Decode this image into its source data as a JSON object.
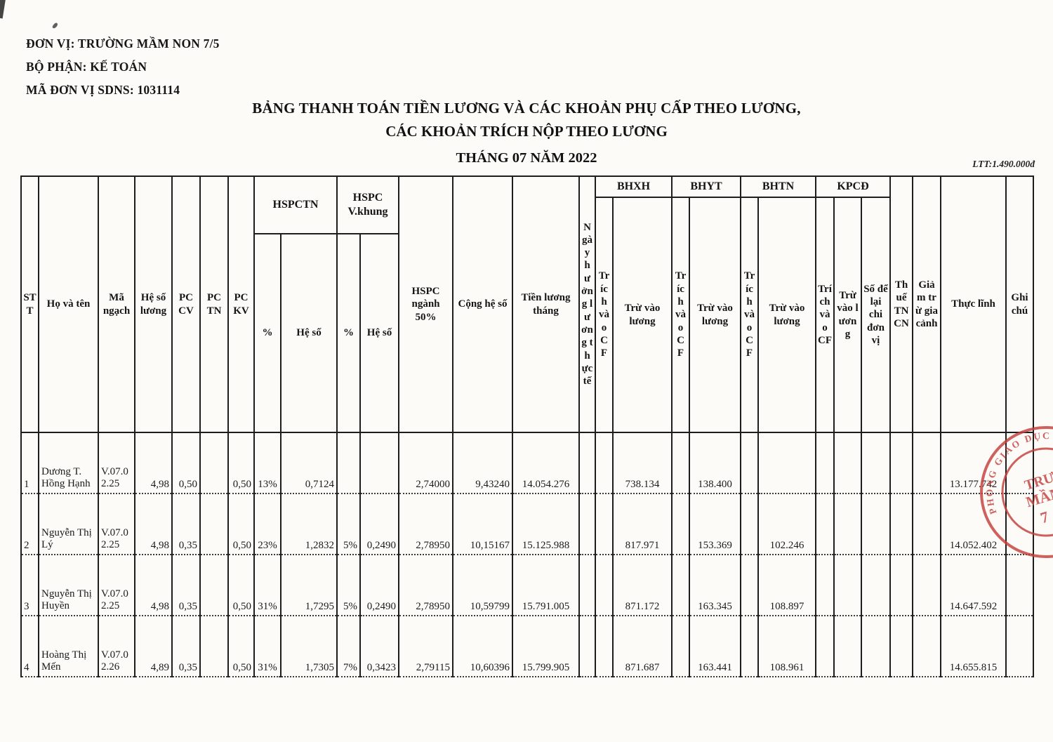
{
  "org": {
    "unit": "ĐƠN VỊ: TRƯỜNG MẦM NON 7/5",
    "department": "BỘ PHẬN: KẾ TOÁN",
    "unit_code": "MÃ ĐƠN VỊ SDNS: 1031114"
  },
  "title": {
    "line1": "BẢNG THANH TOÁN TIỀN LƯƠNG VÀ CÁC KHOẢN PHỤ CẤP THEO LƯƠNG,",
    "line2": "CÁC KHOẢN TRÍCH NỘP THEO LƯƠNG",
    "line3": "THÁNG 07 NĂM 2022",
    "ltt_note": "LTT:1.490.000đ"
  },
  "table": {
    "headers": {
      "stt": "STT",
      "ho_va_ten": "Họ và tên",
      "ma_ngach": "Mã ngạch",
      "he_so_luong": "Hệ số lương",
      "pc_cv": "PC CV",
      "pc_tn": "PC TN",
      "pc_kv": "PC KV",
      "hspctn": "HSPCTN",
      "hspc_vkhung": "HSPC V.khung",
      "pct": "%",
      "he_so": "Hệ số",
      "hspc_nganh": "HSPC ngành 50%",
      "cong_he_so": "Cộng hệ số",
      "tien_luong_thang": "Tiền lương tháng",
      "ngay_huong": "Ngày hưởng lương thực tế",
      "bhxh": "BHXH",
      "bhyt": "BHYT",
      "bhtn": "BHTN",
      "kpcd": "KPCĐ",
      "trich_vao_cf": "Trích vào CF",
      "tru_vao_luong": "Trừ vào lương",
      "so_de_lai": "Số để lại chi đơn vị",
      "thue_tncn": "Thuế TNCN",
      "giam_tru": "Giảm trừ gia cảnh",
      "thuc_linh": "Thực lĩnh",
      "ghi_chu": "Ghi chú"
    },
    "rows": [
      {
        "stt": "1",
        "name": "Dương T. Hồng Hạnh",
        "ngach": "V.07.0 2.25",
        "hsl": "4,98",
        "pccv": "0,50",
        "pctn": "",
        "pckv": "0,50",
        "pct1": "13%",
        "hs1": "0,7124",
        "pct2": "",
        "hs2": "",
        "nganh": "2,74000",
        "cong": "9,43240",
        "tien": "14.054.276",
        "ngay": "",
        "bhxh_cf": "",
        "bhxh_tl": "738.134",
        "bhyt_cf": "",
        "bhyt_tl": "138.400",
        "bhtn_cf": "",
        "bhtn_tl": "",
        "kpcd_cf": "",
        "kpcd_tl": "",
        "sodelai": "",
        "thue": "",
        "giam": "",
        "thuclinh": "13.177.742",
        "ghichu": "",
        "mid": []
      },
      {
        "stt": "2",
        "name": "Nguyễn Thị Lý",
        "ngach": "V.07.0 2.25",
        "hsl": "4,98",
        "pccv": "0,35",
        "pctn": "",
        "pckv": "0,50",
        "pct1": "23%",
        "hs1": "1,2832",
        "pct2": "5%",
        "hs2": "0,2490",
        "nganh": "2,78950",
        "cong": "10,15167",
        "tien": "15.125.988",
        "ngay": "",
        "bhxh_cf": "",
        "bhxh_tl": "817.971",
        "bhyt_cf": "",
        "bhyt_tl": "153.369",
        "bhtn_cf": "",
        "bhtn_tl": "102.246",
        "kpcd_cf": "",
        "kpcd_tl": "",
        "sodelai": "",
        "thue": "",
        "giam": "",
        "thuclinh": "14.052.402",
        "ghichu": "",
        "mid": []
      },
      {
        "stt": "3",
        "name": "Nguyễn Thị Huyền",
        "ngach": "V.07.0 2.25",
        "hsl": "4,98",
        "pccv": "0,35",
        "pctn": "",
        "pckv": "0,50",
        "pct1": "31%",
        "hs1": "1,7295",
        "pct2": "5%",
        "hs2": "0,2490",
        "nganh": "2,78950",
        "cong": "10,59799",
        "tien": "15.791.005",
        "ngay": "",
        "bhxh_cf": "",
        "bhxh_tl": "871.172",
        "bhyt_cf": "",
        "bhyt_tl": "163.345",
        "bhtn_cf": "",
        "bhtn_tl": "108.897",
        "kpcd_cf": "",
        "kpcd_tl": "",
        "sodelai": "",
        "thue": "",
        "giam": "",
        "thuclinh": "14.647.592",
        "ghichu": "",
        "mid": []
      },
      {
        "stt": "4",
        "name": "Hoàng Thị Mến",
        "ngach": "V.07.0 2.26",
        "hsl": "4,89",
        "pccv": "0,35",
        "pctn": "",
        "pckv": "0,50",
        "pct1": "31%",
        "hs1": "1,7305",
        "pct2": "7%",
        "hs2": "0,3423",
        "nganh": "2,79115",
        "cong": "10,60396",
        "tien": "15.799.905",
        "ngay": "",
        "bhxh_cf": "",
        "bhxh_tl": "871.687",
        "bhyt_cf": "",
        "bhyt_tl": "163.441",
        "bhtn_cf": "",
        "bhtn_tl": "108.961",
        "kpcd_cf": "",
        "kpcd_tl": "",
        "sodelai": "",
        "thue": "",
        "giam": "",
        "thuclinh": "14.655.815",
        "ghichu": "",
        "mid": [
          "hsl"
        ]
      }
    ]
  },
  "stamp": {
    "ring_text": "PHÒNG GIÁO DỤC VÀ ĐÀO TẠO",
    "inner_line1": "TRƯ",
    "inner_line2": "MẦM",
    "inner_line3": "7",
    "color": "#c5403c"
  }
}
